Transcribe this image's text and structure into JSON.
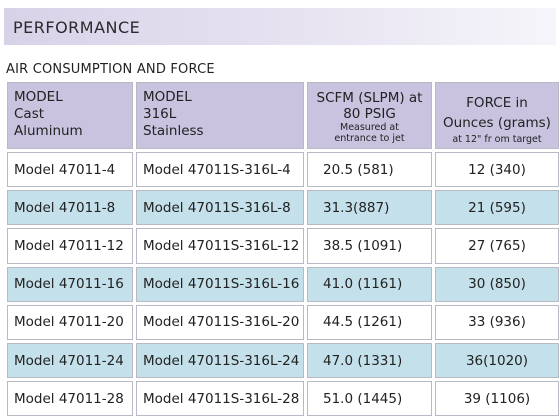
{
  "banner": {
    "title": "PERFORMANCE"
  },
  "section": {
    "title": "AIR CONSUMPTION AND FORCE"
  },
  "table": {
    "headers": [
      {
        "lines": [
          "MODEL",
          "Cast",
          "Aluminum"
        ]
      },
      {
        "lines": [
          "MODEL",
          "316L",
          "Stainless"
        ]
      },
      {
        "lines": [
          "SCFM (SLPM) at",
          "80 PSIG"
        ],
        "small_lines": [
          "Measured at",
          "entrance to jet"
        ]
      },
      {
        "lines": [
          "FORCE  in",
          "Ounces (grams)"
        ],
        "small_lines": [
          "at 12\" fr om target"
        ]
      }
    ],
    "rows": [
      {
        "aluminum": "Model 47011-4",
        "stainless": "Model 47011S-316L-4",
        "scfm": "20.5 (581)",
        "force": "12 (340)"
      },
      {
        "aluminum": "Model 47011-8",
        "stainless": "Model 47011S-316L-8",
        "scfm": "31.3(887)",
        "force": "21 (595)"
      },
      {
        "aluminum": "Model 47011-12",
        "stainless": "Model 47011S-316L-12",
        "scfm": "38.5  (1091)",
        "force": "27 (765)"
      },
      {
        "aluminum": "Model 47011-16",
        "stainless": "Model 47011S-316L-16",
        "scfm": "41.0 (1161)",
        "force": "30 (850)"
      },
      {
        "aluminum": "Model 47011-20",
        "stainless": "Model 47011S-316L-20",
        "scfm": "44.5 (1261)",
        "force": "33 (936)"
      },
      {
        "aluminum": "Model 47011-24",
        "stainless": "Model 47011S-316L-24",
        "scfm": "47.0 (1331)",
        "force": "36(1020)"
      },
      {
        "aluminum": "Model 47011-28",
        "stainless": "Model 47011S-316L-28",
        "scfm": "51.0 (1445)",
        "force": "39 (1106)"
      }
    ]
  },
  "colors": {
    "banner_start": "#d8d2e8",
    "header_fill": "#c9c3e0",
    "alt_row_fill": "#c4e0ea",
    "cell_border": "#b9b9c6"
  }
}
